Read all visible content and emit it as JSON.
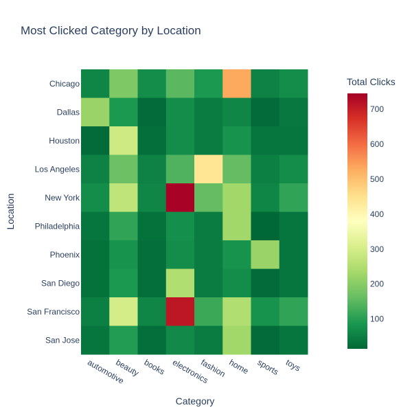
{
  "chart_data": {
    "type": "heatmap",
    "title": "Most Clicked Category by Location",
    "xlabel": "Category",
    "ylabel": "Location",
    "categories": [
      "automotive",
      "beauty",
      "books",
      "electronics",
      "fashion",
      "home",
      "sports",
      "toys"
    ],
    "locations": [
      "Chicago",
      "Dallas",
      "Houston",
      "Los Angeles",
      "New York",
      "Philadelphia",
      "Phoenix",
      "San Diego",
      "San Francisco",
      "San Jose"
    ],
    "values": [
      [
        60,
        190,
        70,
        150,
        90,
        530,
        55,
        70
      ],
      [
        220,
        90,
        20,
        70,
        45,
        60,
        20,
        40
      ],
      [
        20,
        290,
        25,
        70,
        45,
        80,
        35,
        35
      ],
      [
        55,
        170,
        55,
        140,
        440,
        160,
        50,
        70
      ],
      [
        70,
        270,
        60,
        740,
        160,
        230,
        60,
        110
      ],
      [
        35,
        110,
        30,
        75,
        45,
        230,
        15,
        35
      ],
      [
        30,
        80,
        25,
        70,
        45,
        80,
        220,
        35
      ],
      [
        30,
        90,
        25,
        250,
        45,
        70,
        20,
        35
      ],
      [
        50,
        300,
        60,
        710,
        120,
        250,
        80,
        110
      ],
      [
        35,
        95,
        25,
        65,
        45,
        230,
        20,
        35
      ]
    ],
    "colorbar": {
      "title": "Total Clicks",
      "range": [
        15,
        745
      ],
      "ticks": [
        100,
        200,
        300,
        400,
        500,
        600,
        700
      ],
      "colorscale": "RdYlGn reversed"
    }
  },
  "colors": {
    "scale": [
      "#006837",
      "#1a9850",
      "#66bd63",
      "#a6d96a",
      "#d9ef8b",
      "#ffffbf",
      "#fee08b",
      "#fdae61",
      "#f46d43",
      "#d73027",
      "#a50026"
    ]
  }
}
